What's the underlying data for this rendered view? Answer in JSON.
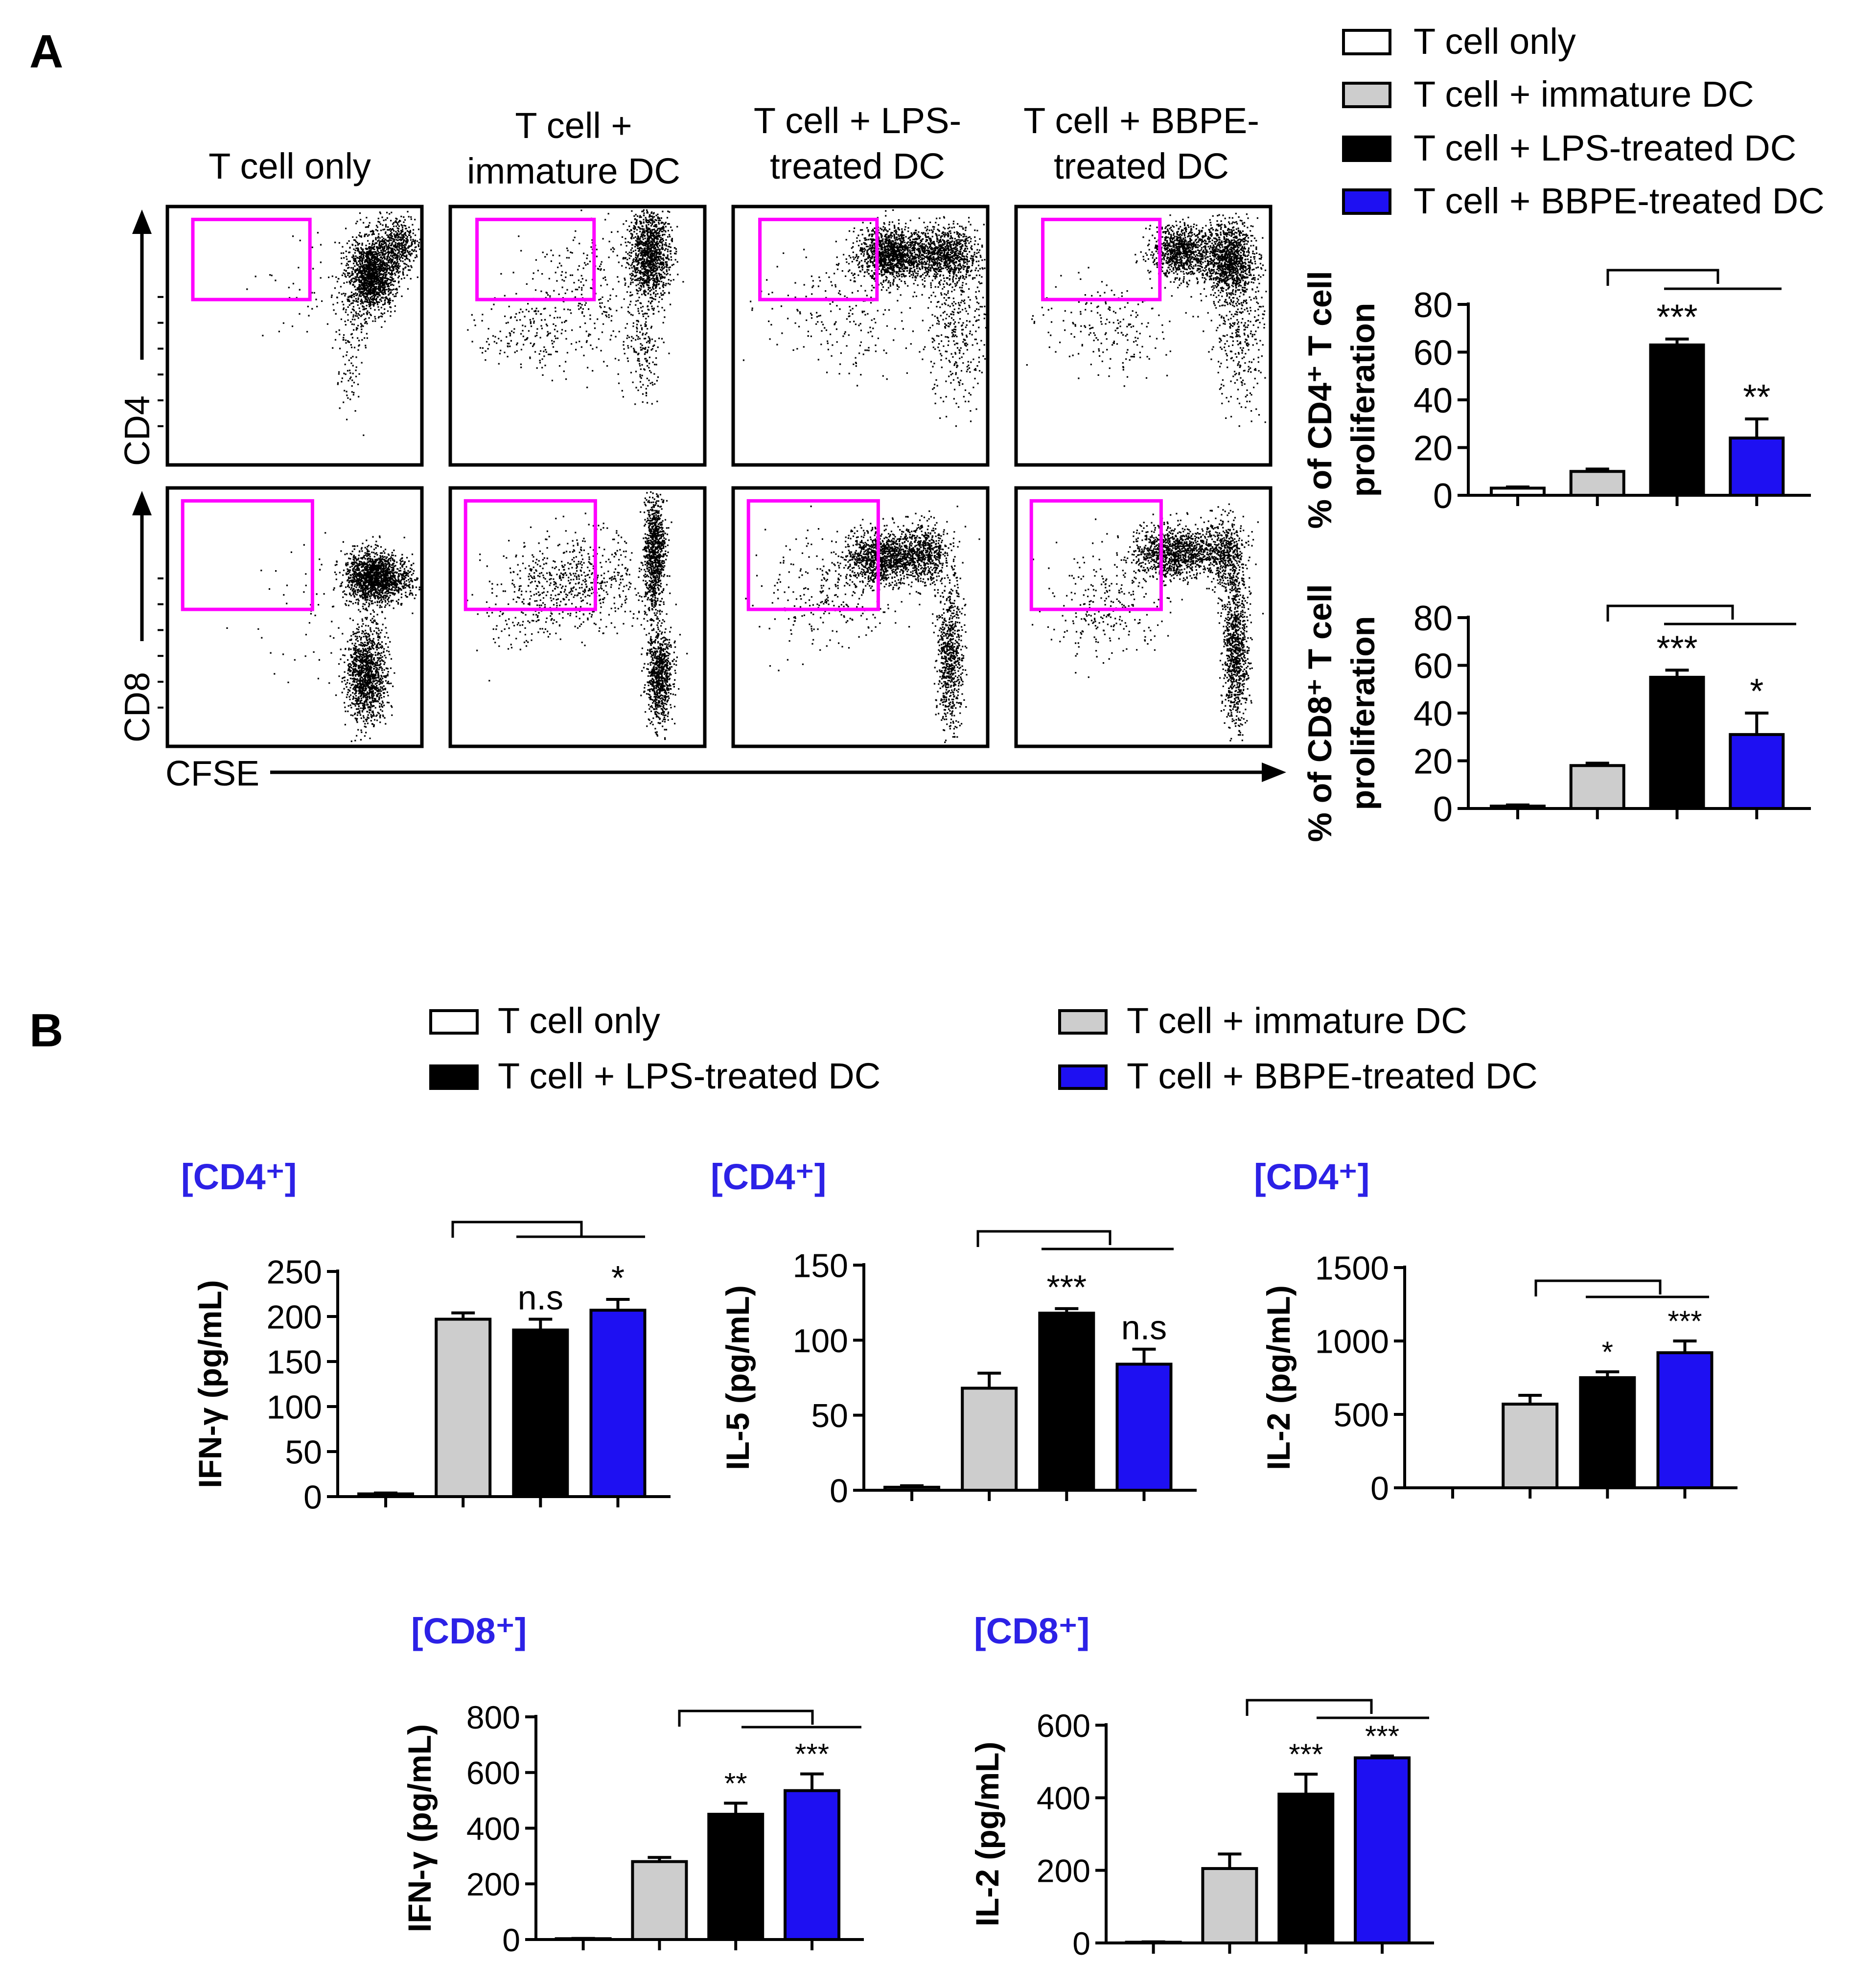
{
  "panel_labels": {
    "a": "A",
    "b": "B"
  },
  "colors": {
    "t_only": "#ffffff",
    "immature": "#cdcdcd",
    "lps": "#000000",
    "bbpe": "#1e10f2",
    "gate": "#ff00ff",
    "header_blue": "#2c21e6"
  },
  "legend_a": [
    "T cell only",
    "T cell + immature DC",
    "T cell + LPS-treated DC",
    "T cell + BBPE-treated DC"
  ],
  "legend_b": [
    "T cell only",
    "T cell + LPS-treated DC",
    "T cell + immature DC",
    "T cell + BBPE-treated DC"
  ],
  "flow": {
    "column_titles": [
      [
        "T cell only"
      ],
      [
        "T cell +",
        "immature DC"
      ],
      [
        "T cell + LPS-",
        "treated DC"
      ],
      [
        "T cell + BBPE-",
        "treated DC"
      ]
    ],
    "y_labels": [
      "CD4",
      "CD8"
    ],
    "x_label": "CFSE"
  },
  "chart_data": [
    {
      "id": "cd4_prolif",
      "type": "bar",
      "ylabel_lines": [
        "% of CD4⁺ T cell",
        "proliferation"
      ],
      "categories": [
        "T cell only",
        "T cell + immature DC",
        "T cell + LPS-treated DC",
        "T cell + BBPE-treated DC"
      ],
      "values": [
        3,
        10,
        63,
        24
      ],
      "errors": [
        0.5,
        1,
        2.5,
        8
      ],
      "ylim": [
        0,
        80
      ],
      "yticks": [
        0,
        20,
        40,
        60,
        80
      ],
      "ytick_labels": [
        "0",
        "20",
        "40",
        "60",
        "80"
      ],
      "annotations": [
        "",
        "",
        "***",
        "**"
      ]
    },
    {
      "id": "cd8_prolif",
      "type": "bar",
      "ylabel_lines": [
        "% of CD8⁺ T cell",
        "proliferation"
      ],
      "categories": [
        "T cell only",
        "T cell + immature DC",
        "T cell + LPS-treated DC",
        "T cell + BBPE-treated DC"
      ],
      "values": [
        1,
        18,
        55,
        31
      ],
      "errors": [
        0.5,
        1,
        3,
        9
      ],
      "ylim": [
        0,
        80
      ],
      "yticks": [
        0,
        20,
        40,
        60,
        80
      ],
      "ytick_labels": [
        "0",
        "20",
        "40",
        "60",
        "80"
      ],
      "annotations": [
        "",
        "",
        "***",
        "*"
      ]
    },
    {
      "id": "cd4_ifng",
      "type": "bar",
      "header": "[CD4⁺]",
      "ylabel_lines": [
        "IFN-γ (pg/mL)"
      ],
      "categories": [
        "T cell only",
        "T cell + immature DC",
        "T cell + LPS-treated DC",
        "T cell + BBPE-treated DC"
      ],
      "values": [
        3,
        197,
        185,
        207
      ],
      "errors": [
        1,
        7,
        12,
        12
      ],
      "ylim": [
        0,
        250
      ],
      "yticks": [
        0,
        50,
        100,
        150,
        200,
        250
      ],
      "ytick_labels": [
        "0",
        "50",
        "100",
        "150",
        "200",
        "250"
      ],
      "annotations": [
        "",
        "",
        "n.s",
        "*"
      ]
    },
    {
      "id": "cd4_il5",
      "type": "bar",
      "header": "[CD4⁺]",
      "ylabel_lines": [
        "IL-5 (pg/mL)"
      ],
      "categories": [
        "T cell only",
        "T cell + immature DC",
        "T cell + LPS-treated DC",
        "T cell + BBPE-treated DC"
      ],
      "values": [
        2,
        68,
        118,
        84
      ],
      "errors": [
        1,
        10,
        3,
        10
      ],
      "ylim": [
        0,
        150
      ],
      "yticks": [
        0,
        50,
        100,
        150
      ],
      "ytick_labels": [
        "0",
        "50",
        "100",
        "150"
      ],
      "annotations": [
        "",
        "",
        "***",
        "n.s"
      ]
    },
    {
      "id": "cd4_il2",
      "type": "bar",
      "header": "[CD4⁺]",
      "ylabel_lines": [
        "IL-2 (pg/mL)"
      ],
      "categories": [
        "T cell only",
        "T cell + immature DC",
        "T cell + LPS-treated DC",
        "T cell + BBPE-treated DC"
      ],
      "values": [
        0,
        570,
        750,
        920
      ],
      "errors": [
        0,
        60,
        40,
        80
      ],
      "ylim": [
        0,
        1500
      ],
      "yticks": [
        0,
        500,
        1000,
        1500
      ],
      "ytick_labels": [
        "0",
        "500",
        "1000",
        "1500"
      ],
      "annotations": [
        "",
        "",
        "*",
        "***"
      ]
    },
    {
      "id": "cd8_ifng",
      "type": "bar",
      "header": "[CD8⁺]",
      "ylabel_lines": [
        "IFN-γ (pg/mL)"
      ],
      "categories": [
        "T cell only",
        "T cell + immature DC",
        "T cell + LPS-treated DC",
        "T cell + BBPE-treated DC"
      ],
      "values": [
        3,
        280,
        450,
        535
      ],
      "errors": [
        1,
        15,
        40,
        60
      ],
      "ylim": [
        0,
        800
      ],
      "yticks": [
        0,
        200,
        400,
        600,
        800
      ],
      "ytick_labels": [
        "0",
        "200",
        "400",
        "600",
        "800"
      ],
      "annotations": [
        "",
        "",
        "**",
        "***"
      ]
    },
    {
      "id": "cd8_il2",
      "type": "bar",
      "header": "[CD8⁺]",
      "ylabel_lines": [
        "IL-2 (pg/mL)"
      ],
      "categories": [
        "T cell only",
        "T cell + immature DC",
        "T cell + LPS-treated DC",
        "T cell + BBPE-treated DC"
      ],
      "values": [
        2,
        205,
        410,
        510
      ],
      "errors": [
        1,
        40,
        55,
        5
      ],
      "ylim": [
        0,
        600
      ],
      "yticks": [
        0,
        200,
        400,
        600
      ],
      "ytick_labels": [
        "0",
        "200",
        "400",
        "600"
      ],
      "annotations": [
        "",
        "",
        "***",
        "***"
      ]
    }
  ]
}
